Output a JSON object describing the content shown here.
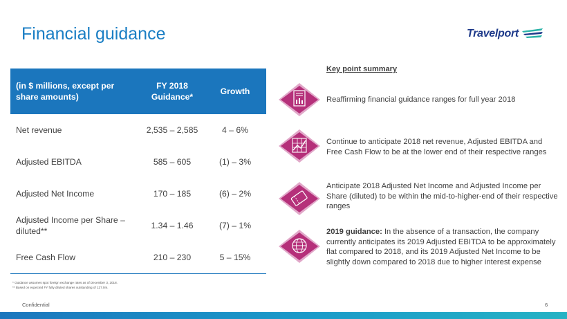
{
  "page": {
    "title": "Financial guidance",
    "logo_text": "Travelport",
    "confidential": "Confidential",
    "page_number": "6"
  },
  "table": {
    "headers": [
      "(in $ millions, except per share amounts)",
      "FY 2018 Guidance*",
      "Growth"
    ],
    "rows": [
      {
        "metric": "Net revenue",
        "guidance": "2,535 – 2,585",
        "growth": "4 – 6%"
      },
      {
        "metric": "Adjusted EBITDA",
        "guidance": "585 – 605",
        "growth": "(1) – 3%"
      },
      {
        "metric": "Adjusted Net Income",
        "guidance": "170 – 185",
        "growth": "(6) – 2%"
      },
      {
        "metric": "Adjusted Income per Share – diluted**",
        "guidance": "1.34 – 1.46",
        "growth": "(7) – 1%"
      },
      {
        "metric": "Free Cash Flow",
        "guidance": "210 – 230",
        "growth": "5 – 15%"
      }
    ]
  },
  "key_points": {
    "title": "Key point summary",
    "items": [
      {
        "icon": "report-chart-icon",
        "text": "Reaffirming financial guidance ranges for full year 2018"
      },
      {
        "icon": "grid-chart-icon",
        "text": "Continue to anticipate 2018 net revenue, Adjusted EBITDA and Free Cash Flow to be at the lower end of their respective ranges"
      },
      {
        "icon": "ticket-icon",
        "text": "Anticipate 2018 Adjusted Net Income and Adjusted Income per Share (diluted) to be within the mid-to-higher-end of their respective ranges"
      },
      {
        "icon": "globe-icon",
        "bold_prefix": "2019 guidance:",
        "text": " In the absence of a transaction, the company currently anticipates its 2019 Adjusted EBITDA to be approximately flat compared to 2018, and its 2019 Adjusted Net Income to be slightly down compared to 2018 due to higher interest expense"
      }
    ]
  },
  "footnotes": [
    "* Guidance assumes spot foreign exchange rates as of December 3, 2018.",
    "** Based on expected FY fully diluted shares outstanding of 127.0m."
  ],
  "colors": {
    "title_blue": "#1a7ec4",
    "header_blue": "#1b76bd",
    "icon_magenta": "#b5307a",
    "logo_navy": "#1e3a8a",
    "logo_teal": "#2bb3a8"
  }
}
